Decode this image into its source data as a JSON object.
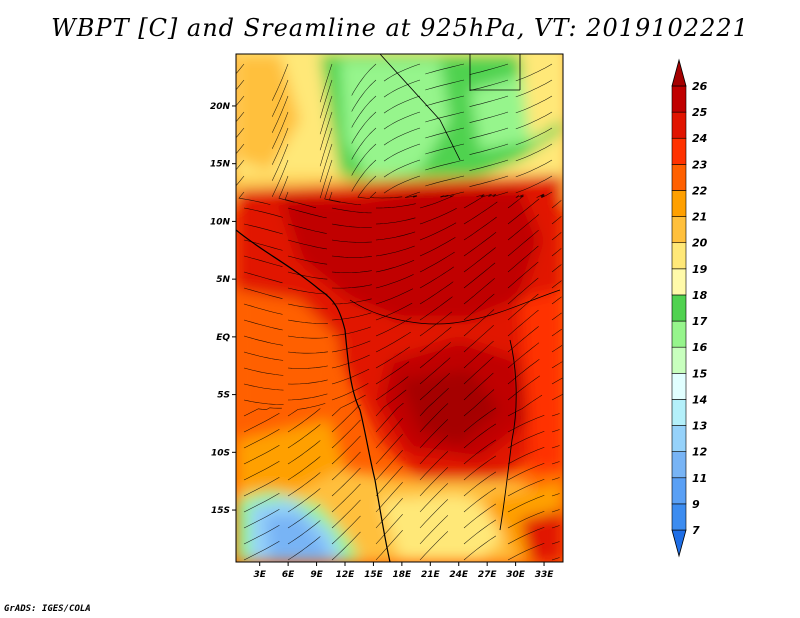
{
  "title": "WBPT [C] and Sreamline at 925hPa, VT: 2019102221",
  "credit": "GrADS: IGES/COLA",
  "chart_data": {
    "type": "heatmap",
    "variable": "WBPT [C] with streamlines",
    "level": "925hPa",
    "valid_time": "2019102221",
    "x_ticks": [
      "3E",
      "6E",
      "9E",
      "12E",
      "15E",
      "18E",
      "21E",
      "24E",
      "27E",
      "30E",
      "33E"
    ],
    "x_values": [
      3,
      6,
      9,
      12,
      15,
      18,
      21,
      24,
      27,
      30,
      33
    ],
    "y_ticks": [
      "20N",
      "15N",
      "10N",
      "5N",
      "EQ",
      "5S",
      "10S",
      "15S"
    ],
    "y_values": [
      20,
      15,
      10,
      5,
      0,
      -5,
      -10,
      -15
    ],
    "xlim": [
      0.5,
      35
    ],
    "ylim": [
      -19.5,
      24.5
    ],
    "colorbar": {
      "levels": [
        "7",
        "9",
        "11",
        "12",
        "13",
        "14",
        "15",
        "16",
        "17",
        "18",
        "19",
        "20",
        "21",
        "22",
        "23",
        "24",
        "25",
        "26"
      ],
      "colors": [
        "#1e6ee6",
        "#3c8cf0",
        "#5aa0f5",
        "#78b4f5",
        "#96d2fa",
        "#b4f0fa",
        "#e1ffff",
        "#c8ffbe",
        "#96f58c",
        "#50d250",
        "#fffaaa",
        "#ffe878",
        "#ffc03c",
        "#ffa000",
        "#ff6000",
        "#ff3200",
        "#e11400",
        "#c00000",
        "#a50000"
      ]
    }
  }
}
